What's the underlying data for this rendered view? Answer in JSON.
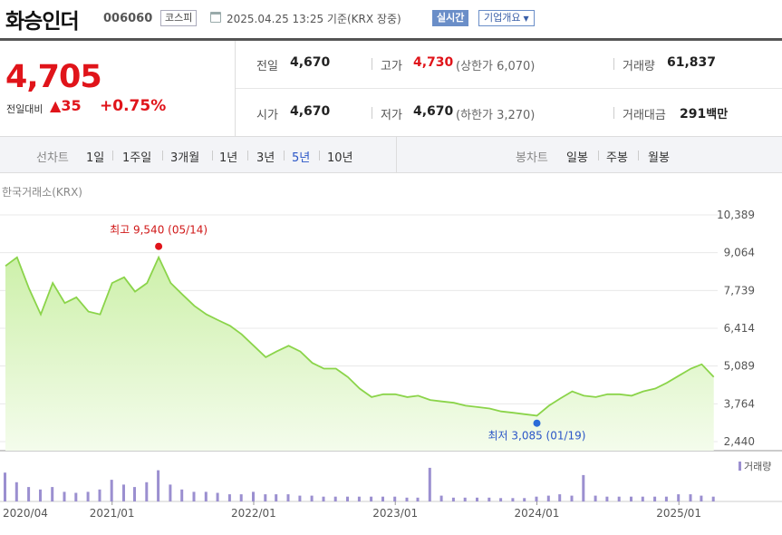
{
  "header": {
    "name": "화승인더",
    "code": "006060",
    "market": "코스피",
    "timestamp": "2025.04.25 13:25 기준(KRX 장중)",
    "realtime": "실시간",
    "company_info": "기업개요"
  },
  "price": {
    "current": "4,705",
    "change_label": "전일대비",
    "change_value": "35",
    "change_pct": "+0.75%"
  },
  "stats": {
    "prev_label": "전일",
    "prev_value": "4,670",
    "high_label": "고가",
    "high_value": "4,730",
    "upper_limit": "(상한가 6,070)",
    "volume_label": "거래량",
    "volume_value": "61,837",
    "open_label": "시가",
    "open_value": "4,670",
    "low_label": "저가",
    "low_value": "4,670",
    "lower_limit": "(하한가 3,270)",
    "amount_label": "거래대금",
    "amount_value": "291",
    "amount_unit": "백만"
  },
  "tabs": {
    "line_label": "선차트",
    "line_tabs": [
      "1일",
      "1주일",
      "3개월",
      "1년",
      "3년",
      "5년",
      "10년"
    ],
    "active": "5년",
    "candle_label": "봉차트",
    "candle_tabs": [
      "일봉",
      "주봉",
      "월봉"
    ]
  },
  "exchange_label": "한국거래소(KRX)",
  "colors": {
    "up": "#e0141a",
    "line": "#8bd44a",
    "area": "#d6f5b8",
    "volume": "#9b8fd0",
    "active_tab": "#2b56c7"
  },
  "chart_data": {
    "type": "area",
    "yticks": [
      "10,389",
      "9,064",
      "7,739",
      "6,414",
      "5,089",
      "3,764",
      "2,440"
    ],
    "ylim": [
      2440,
      10389
    ],
    "xticks": [
      "2020/04",
      "2021/01",
      "2022/01",
      "2023/01",
      "2024/01",
      "2025/01"
    ],
    "max_label": "최고 9,540 (05/14)",
    "min_label": "최저 3,085 (01/19)",
    "max_value": 9540,
    "min_value": 3085,
    "volume_legend": "거래량",
    "series_points": [
      [
        "2020-04",
        8600
      ],
      [
        "2020-05",
        8900
      ],
      [
        "2020-06",
        7800
      ],
      [
        "2020-07",
        6900
      ],
      [
        "2020-08",
        8000
      ],
      [
        "2020-09",
        7300
      ],
      [
        "2020-10",
        7500
      ],
      [
        "2020-11",
        7000
      ],
      [
        "2020-12",
        6900
      ],
      [
        "2021-01",
        8000
      ],
      [
        "2021-02",
        8200
      ],
      [
        "2021-03",
        7700
      ],
      [
        "2021-04",
        8000
      ],
      [
        "2021-05",
        8900
      ],
      [
        "2021-06",
        8000
      ],
      [
        "2021-07",
        7600
      ],
      [
        "2021-08",
        7200
      ],
      [
        "2021-09",
        6900
      ],
      [
        "2021-10",
        6700
      ],
      [
        "2021-11",
        6500
      ],
      [
        "2021-12",
        6200
      ],
      [
        "2022-01",
        5800
      ],
      [
        "2022-02",
        5400
      ],
      [
        "2022-03",
        5600
      ],
      [
        "2022-04",
        5800
      ],
      [
        "2022-05",
        5600
      ],
      [
        "2022-06",
        5200
      ],
      [
        "2022-07",
        5000
      ],
      [
        "2022-08",
        5000
      ],
      [
        "2022-09",
        4700
      ],
      [
        "2022-10",
        4300
      ],
      [
        "2022-11",
        4000
      ],
      [
        "2022-12",
        4100
      ],
      [
        "2023-01",
        4100
      ],
      [
        "2023-02",
        4000
      ],
      [
        "2023-03",
        4050
      ],
      [
        "2023-04",
        3900
      ],
      [
        "2023-05",
        3850
      ],
      [
        "2023-06",
        3800
      ],
      [
        "2023-07",
        3700
      ],
      [
        "2023-08",
        3650
      ],
      [
        "2023-09",
        3600
      ],
      [
        "2023-10",
        3500
      ],
      [
        "2023-11",
        3450
      ],
      [
        "2023-12",
        3400
      ],
      [
        "2024-01",
        3350
      ],
      [
        "2024-02",
        3700
      ],
      [
        "2024-03",
        3950
      ],
      [
        "2024-04",
        4200
      ],
      [
        "2024-05",
        4050
      ],
      [
        "2024-06",
        4000
      ],
      [
        "2024-07",
        4100
      ],
      [
        "2024-08",
        4100
      ],
      [
        "2024-09",
        4050
      ],
      [
        "2024-10",
        4200
      ],
      [
        "2024-11",
        4300
      ],
      [
        "2024-12",
        4500
      ],
      [
        "2025-01",
        4750
      ],
      [
        "2025-02",
        5000
      ],
      [
        "2025-03",
        5150
      ],
      [
        "2025-04",
        4705
      ]
    ],
    "volume_points": [
      [
        "2020-04",
        0.6
      ],
      [
        "2020-05",
        0.4
      ],
      [
        "2020-06",
        0.3
      ],
      [
        "2020-07",
        0.25
      ],
      [
        "2020-08",
        0.3
      ],
      [
        "2020-09",
        0.2
      ],
      [
        "2020-10",
        0.18
      ],
      [
        "2020-11",
        0.2
      ],
      [
        "2020-12",
        0.25
      ],
      [
        "2021-01",
        0.45
      ],
      [
        "2021-02",
        0.35
      ],
      [
        "2021-03",
        0.3
      ],
      [
        "2021-04",
        0.4
      ],
      [
        "2021-05",
        0.65
      ],
      [
        "2021-06",
        0.35
      ],
      [
        "2021-07",
        0.25
      ],
      [
        "2021-08",
        0.2
      ],
      [
        "2021-09",
        0.2
      ],
      [
        "2021-10",
        0.18
      ],
      [
        "2021-11",
        0.15
      ],
      [
        "2021-12",
        0.15
      ],
      [
        "2022-01",
        0.2
      ],
      [
        "2022-02",
        0.15
      ],
      [
        "2022-03",
        0.15
      ],
      [
        "2022-04",
        0.15
      ],
      [
        "2022-05",
        0.12
      ],
      [
        "2022-06",
        0.12
      ],
      [
        "2022-07",
        0.1
      ],
      [
        "2022-08",
        0.1
      ],
      [
        "2022-09",
        0.1
      ],
      [
        "2022-10",
        0.1
      ],
      [
        "2022-11",
        0.1
      ],
      [
        "2022-12",
        0.1
      ],
      [
        "2023-01",
        0.1
      ],
      [
        "2023-02",
        0.08
      ],
      [
        "2023-03",
        0.08
      ],
      [
        "2023-04",
        0.7
      ],
      [
        "2023-05",
        0.12
      ],
      [
        "2023-06",
        0.08
      ],
      [
        "2023-07",
        0.08
      ],
      [
        "2023-08",
        0.08
      ],
      [
        "2023-09",
        0.08
      ],
      [
        "2023-10",
        0.07
      ],
      [
        "2023-11",
        0.07
      ],
      [
        "2023-12",
        0.07
      ],
      [
        "2024-01",
        0.1
      ],
      [
        "2024-02",
        0.12
      ],
      [
        "2024-03",
        0.15
      ],
      [
        "2024-04",
        0.12
      ],
      [
        "2024-05",
        0.55
      ],
      [
        "2024-06",
        0.12
      ],
      [
        "2024-07",
        0.1
      ],
      [
        "2024-08",
        0.1
      ],
      [
        "2024-09",
        0.1
      ],
      [
        "2024-10",
        0.1
      ],
      [
        "2024-11",
        0.1
      ],
      [
        "2024-12",
        0.1
      ],
      [
        "2025-01",
        0.15
      ],
      [
        "2025-02",
        0.15
      ],
      [
        "2025-03",
        0.12
      ],
      [
        "2025-04",
        0.1
      ]
    ]
  }
}
